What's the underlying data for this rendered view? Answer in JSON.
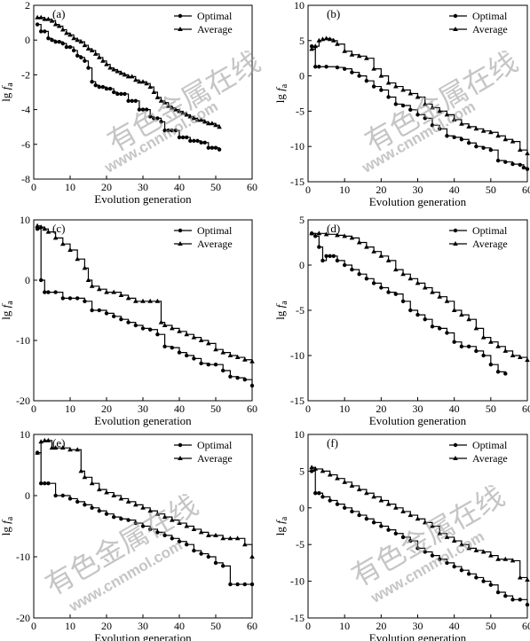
{
  "chart_data": [
    {
      "type": "line",
      "panel_label": "(a)",
      "xlabel": "Evolution generation",
      "ylabel_main": "lg",
      "ylabel_var": "f",
      "ylabel_sub": "a",
      "xlim": [
        0,
        60
      ],
      "ylim": [
        -8,
        2
      ],
      "xticks": [
        "0",
        "10",
        "20",
        "30",
        "40",
        "50",
        "60"
      ],
      "yticks": [
        "-8",
        "-6",
        "-4",
        "-2",
        "0",
        "2"
      ],
      "legend_position": "top-right",
      "series": [
        {
          "name": "Optimal",
          "marker": "circle",
          "x": [
            1,
            2,
            3,
            4,
            5,
            6,
            7,
            8,
            9,
            10,
            11,
            12,
            13,
            14,
            15,
            16,
            17,
            18,
            19,
            20,
            21,
            22,
            23,
            24,
            25,
            26,
            27,
            28,
            29,
            30,
            31,
            32,
            33,
            34,
            35,
            36,
            37,
            38,
            39,
            40,
            41,
            42,
            43,
            44,
            45,
            46,
            47,
            48,
            49,
            50,
            51
          ],
          "y": [
            0.9,
            0.5,
            0.5,
            0.1,
            0.0,
            -0.1,
            -0.1,
            -0.2,
            -0.4,
            -0.4,
            -0.6,
            -0.9,
            -1.0,
            -1.2,
            -1.6,
            -2.4,
            -2.6,
            -2.7,
            -2.7,
            -2.8,
            -2.8,
            -3.0,
            -3.1,
            -3.1,
            -3.1,
            -3.5,
            -3.5,
            -3.5,
            -4.0,
            -4.0,
            -4.0,
            -4.4,
            -4.5,
            -4.5,
            -4.7,
            -5.2,
            -5.2,
            -5.2,
            -5.2,
            -5.6,
            -5.6,
            -5.6,
            -5.8,
            -5.8,
            -5.8,
            -5.9,
            -5.9,
            -6.2,
            -6.2,
            -6.2,
            -6.3
          ]
        },
        {
          "name": "Average",
          "marker": "triangle",
          "x": [
            1,
            2,
            3,
            4,
            5,
            6,
            7,
            8,
            9,
            10,
            11,
            12,
            13,
            14,
            15,
            16,
            17,
            18,
            19,
            20,
            21,
            22,
            23,
            24,
            25,
            26,
            27,
            28,
            29,
            30,
            31,
            32,
            33,
            34,
            35,
            36,
            37,
            38,
            39,
            40,
            41,
            42,
            43,
            44,
            45,
            46,
            47,
            48,
            49,
            50,
            51
          ],
          "y": [
            1.3,
            1.3,
            1.2,
            1.2,
            1.1,
            0.9,
            0.8,
            0.6,
            0.4,
            0.3,
            0.1,
            0.0,
            -0.1,
            -0.3,
            -0.5,
            -0.6,
            -0.8,
            -1.0,
            -1.2,
            -1.4,
            -1.6,
            -1.7,
            -1.8,
            -1.9,
            -2.0,
            -2.1,
            -2.1,
            -2.3,
            -2.4,
            -2.4,
            -2.5,
            -2.7,
            -3.0,
            -3.3,
            -3.5,
            -3.6,
            -3.8,
            -3.9,
            -4.0,
            -4.1,
            -4.2,
            -4.3,
            -4.4,
            -4.5,
            -4.6,
            -4.6,
            -4.7,
            -4.8,
            -4.8,
            -4.9,
            -5.0
          ]
        }
      ]
    },
    {
      "type": "line",
      "panel_label": "(b)",
      "xlabel": "Evolution generation",
      "ylabel_main": "lg",
      "ylabel_var": "f",
      "ylabel_sub": "a",
      "xlim": [
        0,
        60
      ],
      "ylim": [
        -15,
        10
      ],
      "xticks": [
        "0",
        "10",
        "20",
        "30",
        "40",
        "50",
        "60"
      ],
      "yticks": [
        "-15",
        "-10",
        "-5",
        "0",
        "5",
        "10"
      ],
      "legend_position": "top-right",
      "series": [
        {
          "name": "Optimal",
          "marker": "circle",
          "x": [
            1,
            2,
            3,
            5,
            8,
            10,
            12,
            14,
            16,
            18,
            20,
            22,
            24,
            26,
            28,
            30,
            32,
            34,
            36,
            38,
            40,
            42,
            44,
            46,
            48,
            50,
            52,
            54,
            56,
            58,
            59,
            60
          ],
          "y": [
            4.2,
            1.3,
            1.3,
            1.3,
            1.2,
            1.0,
            0.5,
            0.0,
            -0.7,
            -1.5,
            -2.0,
            -3.0,
            -4.0,
            -4.2,
            -4.8,
            -5.5,
            -6.0,
            -7.0,
            -7.5,
            -8.5,
            -8.7,
            -9.0,
            -9.5,
            -10.0,
            -10.2,
            -10.5,
            -12.0,
            -12.2,
            -12.5,
            -12.6,
            -13.0,
            -13.2
          ]
        },
        {
          "name": "Average",
          "marker": "triangle",
          "x": [
            1,
            2,
            3,
            4,
            5,
            6,
            7,
            8,
            10,
            12,
            14,
            16,
            18,
            20,
            22,
            24,
            26,
            28,
            30,
            32,
            34,
            36,
            38,
            40,
            42,
            44,
            46,
            48,
            50,
            52,
            54,
            56,
            58,
            60
          ],
          "y": [
            3.8,
            4.2,
            5.0,
            5.2,
            5.3,
            5.2,
            5.0,
            4.5,
            3.5,
            3.0,
            2.8,
            2.5,
            1.0,
            0.0,
            -1.0,
            -1.5,
            -2.0,
            -2.5,
            -3.0,
            -4.0,
            -4.5,
            -5.0,
            -5.5,
            -6.2,
            -6.8,
            -7.2,
            -7.5,
            -7.8,
            -8.0,
            -8.5,
            -9.0,
            -9.3,
            -10.5,
            -11.0
          ]
        }
      ]
    },
    {
      "type": "line",
      "panel_label": "(c)",
      "xlabel": "Evolution generation",
      "ylabel_main": "lg",
      "ylabel_var": "f",
      "ylabel_sub": "a",
      "xlim": [
        0,
        60
      ],
      "ylim": [
        -20,
        10
      ],
      "xticks": [
        "0",
        "10",
        "20",
        "30",
        "40",
        "50",
        "60"
      ],
      "yticks": [
        "-20",
        "-10",
        "0",
        "10"
      ],
      "legend_position": "top-right",
      "series": [
        {
          "name": "Optimal",
          "marker": "circle",
          "x": [
            1,
            2,
            3,
            4,
            6,
            8,
            10,
            12,
            14,
            16,
            18,
            20,
            22,
            24,
            26,
            28,
            30,
            32,
            34,
            36,
            38,
            40,
            42,
            44,
            46,
            48,
            50,
            52,
            54,
            56,
            58,
            60
          ],
          "y": [
            8.5,
            0.0,
            -2.0,
            -2.0,
            -2.0,
            -3.0,
            -3.0,
            -3.0,
            -3.5,
            -5.0,
            -5.0,
            -5.5,
            -6.0,
            -6.5,
            -7.0,
            -7.5,
            -8.0,
            -8.2,
            -9.0,
            -11.0,
            -11.2,
            -12.0,
            -12.5,
            -13.0,
            -13.8,
            -14.0,
            -14.0,
            -15.0,
            -16.0,
            -16.2,
            -16.5,
            -17.5
          ]
        },
        {
          "name": "Average",
          "marker": "triangle",
          "x": [
            1,
            2,
            3,
            4,
            6,
            8,
            10,
            12,
            14,
            15,
            16,
            18,
            20,
            22,
            24,
            26,
            28,
            30,
            32,
            34,
            35,
            36,
            38,
            40,
            42,
            44,
            46,
            48,
            50,
            52,
            54,
            56,
            58,
            60
          ],
          "y": [
            9.0,
            8.8,
            8.5,
            8.0,
            7.0,
            6.0,
            5.0,
            3.5,
            2.0,
            0.0,
            -1.0,
            -1.5,
            -2.0,
            -2.0,
            -2.5,
            -3.0,
            -3.5,
            -3.5,
            -3.5,
            -3.5,
            -7.0,
            -7.5,
            -8.0,
            -8.5,
            -9.0,
            -9.5,
            -10.0,
            -10.5,
            -11.5,
            -12.0,
            -12.5,
            -12.8,
            -13.2,
            -13.5
          ]
        }
      ]
    },
    {
      "type": "line",
      "panel_label": "(d)",
      "xlabel": "Evolution generation",
      "ylabel_main": "lg",
      "ylabel_var": "f",
      "ylabel_sub": "a",
      "xlim": [
        0,
        60
      ],
      "ylim": [
        -15,
        5
      ],
      "xticks": [
        "0",
        "10",
        "20",
        "30",
        "40",
        "50",
        "60"
      ],
      "yticks": [
        "-15",
        "-10",
        "-5",
        "0",
        "5"
      ],
      "legend_position": "top-right",
      "series": [
        {
          "name": "Optimal",
          "marker": "circle",
          "x": [
            1,
            2,
            3,
            4,
            5,
            6,
            7,
            8,
            10,
            12,
            14,
            16,
            18,
            20,
            22,
            24,
            26,
            28,
            30,
            32,
            34,
            36,
            38,
            40,
            42,
            44,
            46,
            48,
            50,
            52,
            54
          ],
          "y": [
            3.5,
            3.2,
            2.0,
            0.5,
            1.0,
            1.0,
            1.0,
            0.5,
            0.0,
            -0.5,
            -1.0,
            -1.5,
            -2.0,
            -2.5,
            -3.0,
            -3.2,
            -4.0,
            -5.0,
            -5.5,
            -6.0,
            -6.8,
            -7.0,
            -7.5,
            -8.5,
            -9.0,
            -9.0,
            -9.5,
            -10.0,
            -11.0,
            -11.8,
            -12.0
          ]
        },
        {
          "name": "Average",
          "marker": "triangle",
          "x": [
            1,
            3,
            5,
            8,
            10,
            12,
            14,
            16,
            18,
            20,
            22,
            24,
            26,
            28,
            30,
            32,
            34,
            36,
            38,
            40,
            42,
            44,
            46,
            48,
            50,
            52,
            54,
            56,
            58,
            60
          ],
          "y": [
            3.5,
            3.5,
            3.4,
            3.3,
            3.2,
            3.0,
            2.5,
            2.0,
            1.5,
            1.0,
            0.5,
            -0.5,
            -1.0,
            -1.5,
            -2.0,
            -2.5,
            -3.0,
            -3.5,
            -4.0,
            -5.0,
            -5.5,
            -6.0,
            -7.0,
            -8.0,
            -8.5,
            -9.0,
            -9.5,
            -10.0,
            -10.2,
            -10.5
          ]
        }
      ]
    },
    {
      "type": "line",
      "panel_label": "(e)",
      "xlabel": "Evolution generation",
      "ylabel_main": "lg",
      "ylabel_var": "f",
      "ylabel_sub": "a",
      "xlim": [
        0,
        60
      ],
      "ylim": [
        -20,
        10
      ],
      "xticks": [
        "0",
        "10",
        "20",
        "30",
        "40",
        "50",
        "60"
      ],
      "yticks": [
        "-20",
        "-10",
        "0",
        "10"
      ],
      "legend_position": "top-right",
      "series": [
        {
          "name": "Optimal",
          "marker": "circle",
          "x": [
            1,
            2,
            3,
            4,
            6,
            8,
            10,
            12,
            14,
            16,
            18,
            20,
            22,
            24,
            26,
            28,
            30,
            32,
            34,
            36,
            38,
            40,
            42,
            44,
            46,
            48,
            50,
            52,
            54,
            56,
            58,
            60
          ],
          "y": [
            7.0,
            2.0,
            2.0,
            2.0,
            0.0,
            0.0,
            -0.5,
            -1.0,
            -1.5,
            -2.0,
            -2.5,
            -3.0,
            -3.5,
            -3.8,
            -4.0,
            -4.5,
            -5.0,
            -5.5,
            -6.0,
            -6.5,
            -7.0,
            -7.5,
            -8.0,
            -9.0,
            -9.5,
            -10.0,
            -11.0,
            -11.5,
            -14.5,
            -14.5,
            -14.5,
            -14.5
          ]
        },
        {
          "name": "Average",
          "marker": "triangle",
          "x": [
            1,
            2,
            3,
            4,
            5,
            6,
            8,
            10,
            12,
            13,
            14,
            16,
            18,
            20,
            22,
            24,
            26,
            28,
            30,
            32,
            34,
            36,
            38,
            40,
            42,
            44,
            46,
            48,
            50,
            52,
            54,
            56,
            58,
            60
          ],
          "y": [
            7.0,
            8.8,
            9.0,
            9.0,
            7.8,
            7.8,
            7.8,
            7.5,
            7.5,
            4.0,
            3.0,
            2.0,
            1.0,
            0.5,
            0.0,
            -0.5,
            -1.0,
            -1.5,
            -2.0,
            -2.5,
            -3.0,
            -3.5,
            -4.0,
            -4.5,
            -5.0,
            -5.5,
            -6.0,
            -6.5,
            -6.5,
            -7.0,
            -7.0,
            -7.0,
            -8.0,
            -10.0
          ]
        }
      ]
    },
    {
      "type": "line",
      "panel_label": "(f)",
      "xlabel": "Evolution generation",
      "ylabel_main": "lg",
      "ylabel_var": "f",
      "ylabel_sub": "a",
      "xlim": [
        0,
        60
      ],
      "ylim": [
        -15,
        10
      ],
      "xticks": [
        "0",
        "10",
        "20",
        "30",
        "40",
        "50",
        "60"
      ],
      "yticks": [
        "-15",
        "-10",
        "-5",
        "0",
        "5",
        "10"
      ],
      "legend_position": "top-right",
      "series": [
        {
          "name": "Optimal",
          "marker": "circle",
          "x": [
            1,
            2,
            3,
            4,
            6,
            8,
            10,
            12,
            14,
            16,
            18,
            20,
            22,
            24,
            26,
            28,
            30,
            32,
            34,
            36,
            38,
            40,
            42,
            44,
            46,
            48,
            50,
            52,
            54,
            56,
            58,
            60
          ],
          "y": [
            5.0,
            2.0,
            2.0,
            1.5,
            1.0,
            0.5,
            0.0,
            -0.5,
            -1.0,
            -1.5,
            -2.0,
            -2.5,
            -3.0,
            -3.5,
            -4.0,
            -4.5,
            -5.5,
            -6.0,
            -6.5,
            -7.0,
            -7.5,
            -8.0,
            -8.5,
            -9.0,
            -9.5,
            -10.0,
            -10.5,
            -11.5,
            -12.0,
            -12.5,
            -12.5,
            -13.2
          ]
        },
        {
          "name": "Average",
          "marker": "triangle",
          "x": [
            1,
            2,
            4,
            6,
            8,
            10,
            12,
            14,
            16,
            18,
            20,
            22,
            24,
            26,
            28,
            30,
            32,
            34,
            36,
            38,
            40,
            42,
            44,
            46,
            48,
            50,
            52,
            54,
            56,
            58,
            60
          ],
          "y": [
            5.5,
            5.3,
            5.0,
            4.5,
            4.0,
            3.5,
            3.0,
            2.5,
            2.0,
            1.5,
            1.0,
            0.5,
            0.0,
            -0.5,
            -1.0,
            -1.5,
            -2.0,
            -2.5,
            -3.5,
            -4.0,
            -4.5,
            -5.0,
            -5.5,
            -5.8,
            -6.0,
            -6.5,
            -7.0,
            -7.0,
            -7.2,
            -9.5,
            -9.8
          ]
        }
      ]
    }
  ],
  "watermark": {
    "cn": "有色金属在线",
    "en": "www.cnnmol.com",
    "color": "#999999"
  }
}
